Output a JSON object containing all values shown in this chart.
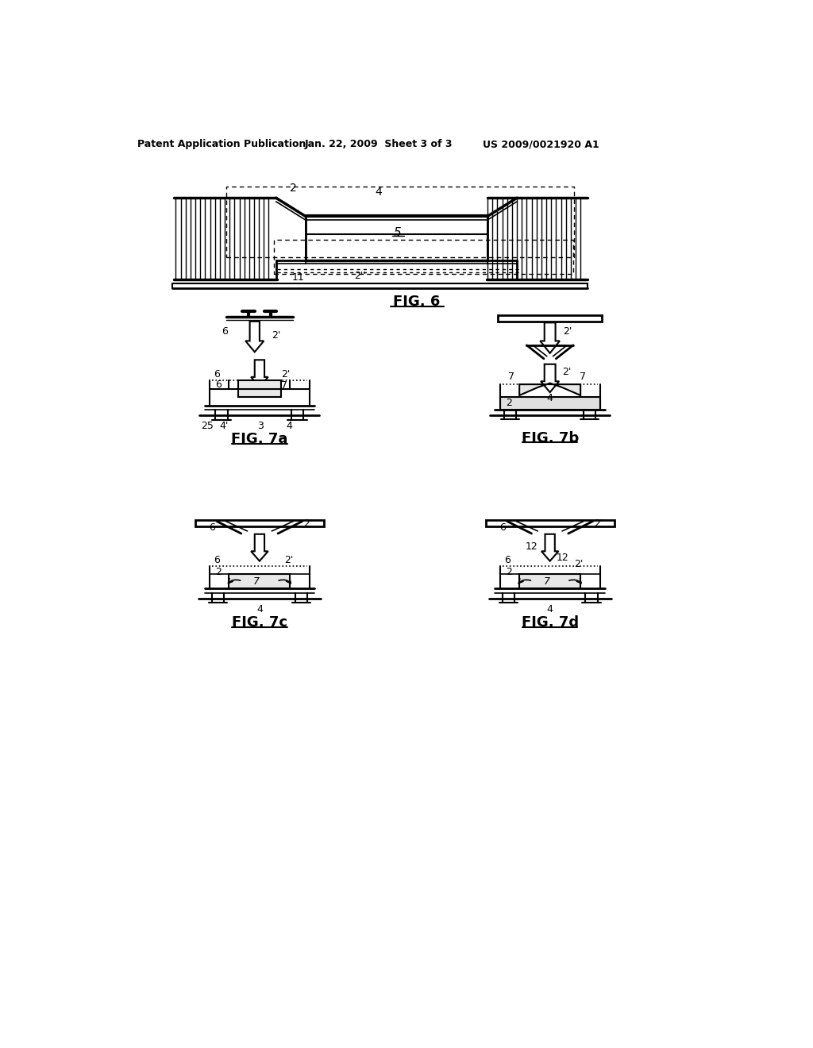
{
  "bg_color": "#ffffff",
  "line_color": "#000000",
  "header_left": "Patent Application Publication",
  "header_center": "Jan. 22, 2009  Sheet 3 of 3",
  "header_right": "US 2009/0021920 A1",
  "fig6_label": "FIG. 6",
  "fig7a_label": "FIG. 7a",
  "fig7b_label": "FIG. 7b",
  "fig7c_label": "FIG. 7c",
  "fig7d_label": "FIG. 7d"
}
